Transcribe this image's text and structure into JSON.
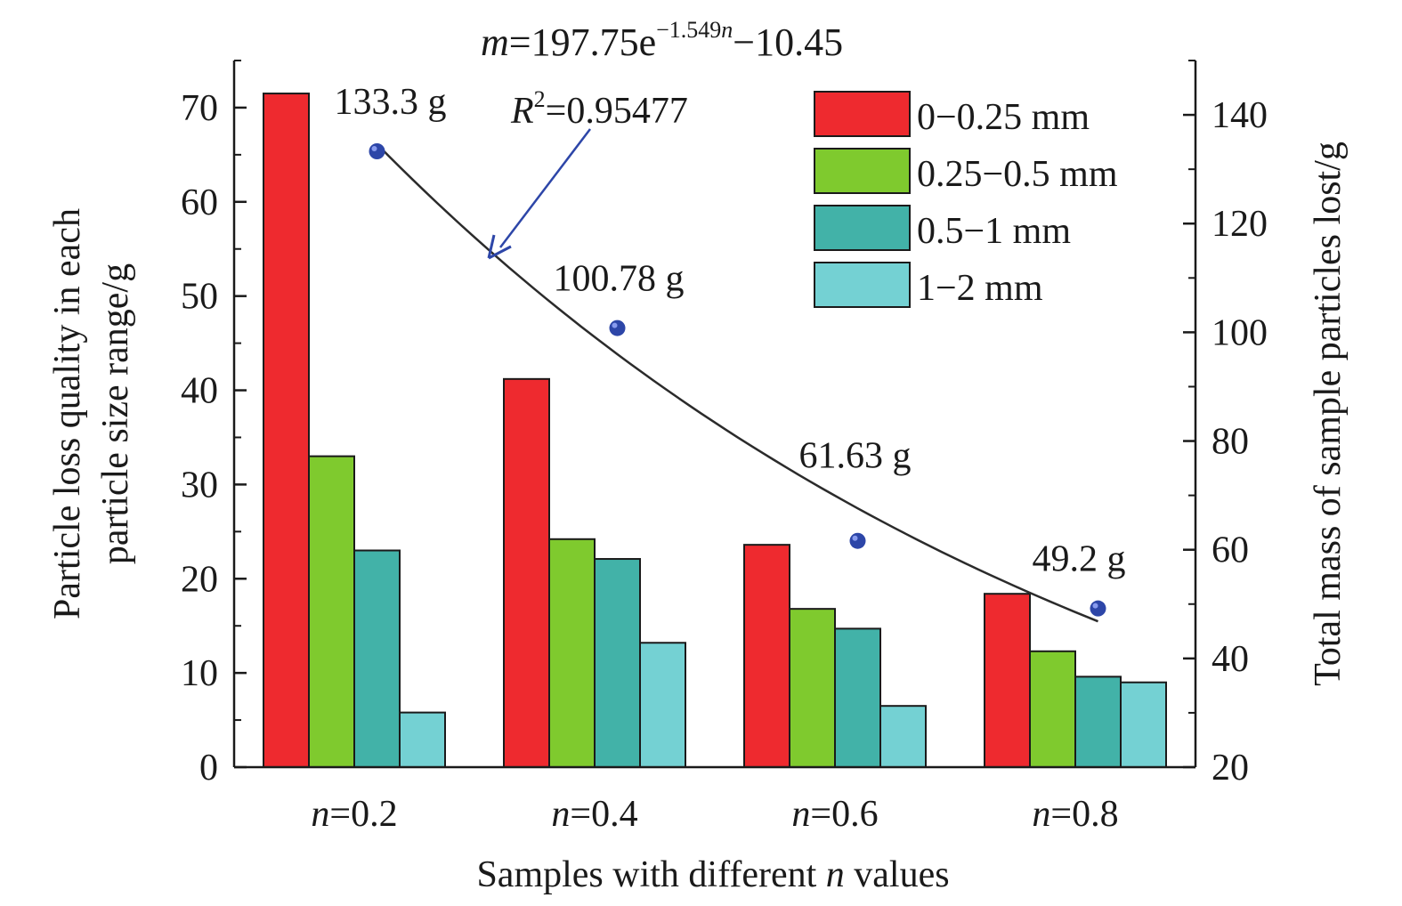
{
  "chart_data": {
    "type": "bar",
    "categories": [
      "n=0.2",
      "n=0.4",
      "n=0.6",
      "n=0.8"
    ],
    "category_labels": [
      {
        "italic": "n",
        "rest": "=0.2"
      },
      {
        "italic": "n",
        "rest": "=0.4"
      },
      {
        "italic": "n",
        "rest": "=0.6"
      },
      {
        "italic": "n",
        "rest": "=0.8"
      }
    ],
    "series": [
      {
        "name": "0−0.25 mm",
        "color": "#ee2a2f",
        "values": [
          71.5,
          41.2,
          23.6,
          18.4
        ]
      },
      {
        "name": "0.25−0.5 mm",
        "color": "#7fca2e",
        "values": [
          33.0,
          24.2,
          16.8,
          12.3
        ]
      },
      {
        "name": "0.5−1 mm",
        "color": "#42b2a8",
        "values": [
          23.0,
          22.1,
          14.7,
          9.6
        ]
      },
      {
        "name": "1−2 mm",
        "color": "#74d1d3",
        "values": [
          5.8,
          13.2,
          6.5,
          9.0
        ]
      }
    ],
    "ylim": [
      0,
      75
    ],
    "y_ticks": [
      0,
      10,
      20,
      30,
      40,
      50,
      60,
      70
    ],
    "y2lim": [
      20,
      150
    ],
    "y2_ticks": [
      20,
      40,
      60,
      80,
      100,
      120,
      140
    ],
    "xlabel": {
      "pre": "Samples with different ",
      "italic": "n",
      "post": " values"
    },
    "ylabel_lines": [
      "Particle loss quality in each",
      "particle size range/g"
    ],
    "y2label": "Total mass of sample particles lost/g",
    "total_mass": {
      "color": "#2d46a8",
      "x": [
        0.2,
        0.4,
        0.6,
        0.8
      ],
      "values": [
        133.3,
        100.78,
        61.63,
        49.2
      ],
      "labels": [
        "133.3 g",
        "100.78 g",
        "61.63 g",
        "49.2 g"
      ]
    },
    "fit": {
      "a": 197.75,
      "b": -1.549,
      "c": -10.45,
      "x_range": [
        0.2,
        0.8
      ],
      "equation": {
        "lhs": "m",
        "eq": "=197.75e",
        "exp": "−1.549",
        "exp_var": "n",
        "tail": "−10.45"
      },
      "r2": {
        "var": "R",
        "sup": "2",
        "value": "=0.95477"
      },
      "arrow_color": "#2d46a8"
    },
    "legend": {
      "position": "top-right"
    },
    "grid": false
  }
}
